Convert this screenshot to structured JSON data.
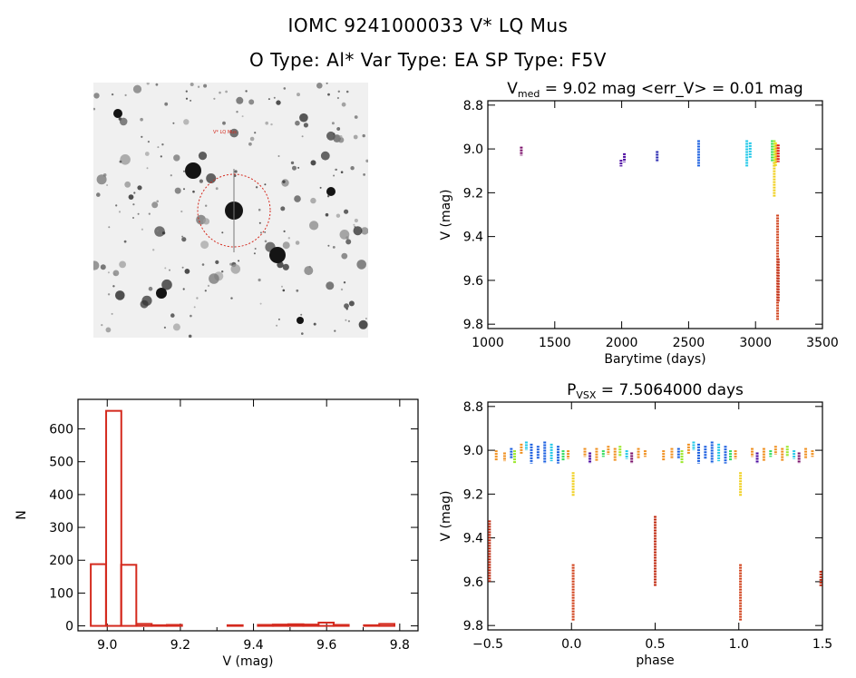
{
  "header": {
    "line1": "IOMC 9241000033   V* LQ Mus",
    "line2": "O Type: Al*  Var Type: EA  SP Type: F5V"
  },
  "thumbnail": {
    "label": "V* LQ Mus"
  },
  "colors": {
    "axis": "#000000",
    "histogram": "#d42a1e",
    "circle": "#d42a1e"
  },
  "chart_data": [
    {
      "id": "lightcurve",
      "type": "scatter",
      "title_parts": [
        "V",
        "med",
        " = 9.02 mag <err_V> = 0.01 mag"
      ],
      "xlabel": "Barytime (days)",
      "ylabel": "V (mag)",
      "xlim": [
        1000,
        3500
      ],
      "ylim": [
        9.82,
        8.78
      ],
      "xticks": [
        "1000",
        "1500",
        "2000",
        "2500",
        "3000",
        "3500"
      ],
      "yticks": [
        "8.8",
        "9.0",
        "9.2",
        "9.4",
        "9.6",
        "9.8"
      ],
      "points": [
        {
          "x": 1250,
          "y0": 8.99,
          "y1": 9.03,
          "c": "#7a0f6a"
        },
        {
          "x": 1995,
          "y0": 9.05,
          "y1": 9.08,
          "c": "#4b0aa0"
        },
        {
          "x": 2020,
          "y0": 9.02,
          "y1": 9.06,
          "c": "#4b0aa0"
        },
        {
          "x": 2265,
          "y0": 9.01,
          "y1": 9.06,
          "c": "#2a2ab0"
        },
        {
          "x": 2575,
          "y0": 8.96,
          "y1": 9.08,
          "c": "#1a5fe0"
        },
        {
          "x": 2935,
          "y0": 8.96,
          "y1": 9.08,
          "c": "#22c8e8"
        },
        {
          "x": 2960,
          "y0": 8.97,
          "y1": 9.04,
          "c": "#22c8e8"
        },
        {
          "x": 3125,
          "y0": 8.96,
          "y1": 9.06,
          "c": "#2edc5a"
        },
        {
          "x": 3140,
          "y0": 8.96,
          "y1": 9.08,
          "c": "#9be82a"
        },
        {
          "x": 3150,
          "y0": 8.97,
          "y1": 9.08,
          "c": "#f0e020"
        },
        {
          "x": 3160,
          "y0": 8.98,
          "y1": 9.06,
          "c": "#f09020"
        },
        {
          "x": 3170,
          "y0": 8.98,
          "y1": 9.06,
          "c": "#e01a1a"
        },
        {
          "x": 3140,
          "y0": 9.06,
          "y1": 9.22,
          "c": "#f0d020"
        },
        {
          "x": 3165,
          "y0": 9.3,
          "y1": 9.78,
          "c": "#d0401a"
        },
        {
          "x": 3170,
          "y0": 9.5,
          "y1": 9.7,
          "c": "#c02a10"
        }
      ]
    },
    {
      "id": "histogram",
      "type": "bar",
      "xlabel": "V (mag)",
      "ylabel": "N",
      "xlim": [
        8.92,
        9.85
      ],
      "ylim": [
        -15,
        690
      ],
      "xticks": [
        "9.0",
        "9.2",
        "9.4",
        "9.6",
        "9.8"
      ],
      "yticks": [
        "0",
        "100",
        "200",
        "300",
        "400",
        "500",
        "600"
      ],
      "bin_width": 0.0415,
      "bins": [
        {
          "x0": 8.955,
          "n": 188
        },
        {
          "x0": 8.997,
          "n": 655
        },
        {
          "x0": 9.038,
          "n": 186
        },
        {
          "x0": 9.08,
          "n": 6
        },
        {
          "x0": 9.121,
          "n": 2
        },
        {
          "x0": 9.163,
          "n": 3
        },
        {
          "x0": 9.204,
          "n": 0
        },
        {
          "x0": 9.246,
          "n": 0
        },
        {
          "x0": 9.287,
          "n": 0
        },
        {
          "x0": 9.329,
          "n": 2
        },
        {
          "x0": 9.37,
          "n": 0
        },
        {
          "x0": 9.412,
          "n": 3
        },
        {
          "x0": 9.453,
          "n": 4
        },
        {
          "x0": 9.495,
          "n": 5
        },
        {
          "x0": 9.536,
          "n": 4
        },
        {
          "x0": 9.578,
          "n": 10
        },
        {
          "x0": 9.619,
          "n": 3
        },
        {
          "x0": 9.661,
          "n": 0
        },
        {
          "x0": 9.702,
          "n": 2
        },
        {
          "x0": 9.744,
          "n": 6
        }
      ]
    },
    {
      "id": "phased",
      "type": "scatter",
      "title_parts": [
        "P",
        "VSX",
        " = 7.5064000 days"
      ],
      "xlabel": "phase",
      "ylabel": "V (mag)",
      "xlim": [
        -0.5,
        1.5
      ],
      "ylim": [
        9.82,
        8.78
      ],
      "xticks": [
        "−0.5",
        "0.0",
        "0.5",
        "1.0",
        "1.5"
      ],
      "yticks": [
        "8.8",
        "9.0",
        "9.2",
        "9.4",
        "9.6",
        "9.8"
      ],
      "segments": [
        {
          "x": -0.45,
          "y0": 9.0,
          "y1": 9.05,
          "c": "#f09020"
        },
        {
          "x": -0.4,
          "y0": 9.01,
          "y1": 9.05,
          "c": "#f09020"
        },
        {
          "x": -0.36,
          "y0": 8.99,
          "y1": 9.04,
          "c": "#1a5fe0"
        },
        {
          "x": -0.34,
          "y0": 9.0,
          "y1": 9.06,
          "c": "#9be82a"
        },
        {
          "x": -0.3,
          "y0": 8.97,
          "y1": 9.02,
          "c": "#f09020"
        },
        {
          "x": -0.27,
          "y0": 8.96,
          "y1": 9.0,
          "c": "#22c8e8"
        },
        {
          "x": -0.24,
          "y0": 8.97,
          "y1": 9.06,
          "c": "#1a5fe0"
        },
        {
          "x": -0.2,
          "y0": 8.98,
          "y1": 9.04,
          "c": "#1a5fe0"
        },
        {
          "x": -0.16,
          "y0": 8.96,
          "y1": 9.06,
          "c": "#1a5fe0"
        },
        {
          "x": -0.12,
          "y0": 8.97,
          "y1": 9.05,
          "c": "#22c8e8"
        },
        {
          "x": -0.08,
          "y0": 8.98,
          "y1": 9.06,
          "c": "#1a5fe0"
        },
        {
          "x": -0.05,
          "y0": 9.0,
          "y1": 9.05,
          "c": "#2edc5a"
        },
        {
          "x": -0.02,
          "y0": 9.0,
          "y1": 9.04,
          "c": "#f09020"
        },
        {
          "x": 0.01,
          "y0": 9.1,
          "y1": 9.21,
          "c": "#f0d020"
        },
        {
          "x": 0.01,
          "y0": 9.52,
          "y1": 9.78,
          "c": "#d0401a"
        },
        {
          "x": 0.08,
          "y0": 8.99,
          "y1": 9.03,
          "c": "#f09020"
        },
        {
          "x": 0.11,
          "y0": 9.01,
          "y1": 9.06,
          "c": "#4b0aa0"
        },
        {
          "x": 0.15,
          "y0": 8.99,
          "y1": 9.05,
          "c": "#f09020"
        },
        {
          "x": 0.19,
          "y0": 9.0,
          "y1": 9.03,
          "c": "#2edc5a"
        },
        {
          "x": 0.22,
          "y0": 8.98,
          "y1": 9.02,
          "c": "#f09020"
        },
        {
          "x": 0.26,
          "y0": 8.99,
          "y1": 9.05,
          "c": "#f09020"
        },
        {
          "x": 0.29,
          "y0": 8.98,
          "y1": 9.03,
          "c": "#9be82a"
        },
        {
          "x": 0.33,
          "y0": 9.0,
          "y1": 9.04,
          "c": "#22c8e8"
        },
        {
          "x": 0.36,
          "y0": 9.01,
          "y1": 9.06,
          "c": "#7a0f6a"
        },
        {
          "x": 0.4,
          "y0": 8.99,
          "y1": 9.04,
          "c": "#f09020"
        },
        {
          "x": 0.44,
          "y0": 9.0,
          "y1": 9.03,
          "c": "#f09020"
        },
        {
          "x": 0.5,
          "y0": 9.3,
          "y1": 9.62,
          "c": "#c02a10"
        },
        {
          "x": 0.55,
          "y0": 9.0,
          "y1": 9.05,
          "c": "#f09020"
        },
        {
          "x": 0.6,
          "y0": 8.99,
          "y1": 9.04,
          "c": "#f09020"
        },
        {
          "x": 0.64,
          "y0": 8.99,
          "y1": 9.04,
          "c": "#1a5fe0"
        },
        {
          "x": 0.66,
          "y0": 9.0,
          "y1": 9.06,
          "c": "#9be82a"
        },
        {
          "x": 0.7,
          "y0": 8.97,
          "y1": 9.02,
          "c": "#f09020"
        },
        {
          "x": 0.73,
          "y0": 8.96,
          "y1": 9.0,
          "c": "#22c8e8"
        },
        {
          "x": 0.76,
          "y0": 8.97,
          "y1": 9.06,
          "c": "#1a5fe0"
        },
        {
          "x": 0.8,
          "y0": 8.98,
          "y1": 9.04,
          "c": "#1a5fe0"
        },
        {
          "x": 0.84,
          "y0": 8.96,
          "y1": 9.06,
          "c": "#1a5fe0"
        },
        {
          "x": 0.88,
          "y0": 8.97,
          "y1": 9.05,
          "c": "#22c8e8"
        },
        {
          "x": 0.92,
          "y0": 8.98,
          "y1": 9.06,
          "c": "#1a5fe0"
        },
        {
          "x": 0.95,
          "y0": 9.0,
          "y1": 9.05,
          "c": "#2edc5a"
        },
        {
          "x": 0.98,
          "y0": 9.0,
          "y1": 9.04,
          "c": "#f09020"
        },
        {
          "x": 1.01,
          "y0": 9.1,
          "y1": 9.21,
          "c": "#f0d020"
        },
        {
          "x": 1.01,
          "y0": 9.52,
          "y1": 9.78,
          "c": "#d0401a"
        },
        {
          "x": 1.08,
          "y0": 8.99,
          "y1": 9.03,
          "c": "#f09020"
        },
        {
          "x": 1.11,
          "y0": 9.01,
          "y1": 9.06,
          "c": "#4b0aa0"
        },
        {
          "x": 1.15,
          "y0": 8.99,
          "y1": 9.05,
          "c": "#f09020"
        },
        {
          "x": 1.19,
          "y0": 9.0,
          "y1": 9.03,
          "c": "#2edc5a"
        },
        {
          "x": 1.22,
          "y0": 8.98,
          "y1": 9.02,
          "c": "#f09020"
        },
        {
          "x": 1.26,
          "y0": 8.99,
          "y1": 9.05,
          "c": "#f09020"
        },
        {
          "x": 1.29,
          "y0": 8.98,
          "y1": 9.03,
          "c": "#9be82a"
        },
        {
          "x": 1.33,
          "y0": 9.0,
          "y1": 9.04,
          "c": "#22c8e8"
        },
        {
          "x": 1.36,
          "y0": 9.01,
          "y1": 9.06,
          "c": "#7a0f6a"
        },
        {
          "x": 1.4,
          "y0": 8.99,
          "y1": 9.04,
          "c": "#f09020"
        },
        {
          "x": 1.44,
          "y0": 9.0,
          "y1": 9.03,
          "c": "#f09020"
        },
        {
          "x": -0.49,
          "y0": 9.32,
          "y1": 9.6,
          "c": "#c02a10"
        },
        {
          "x": 1.49,
          "y0": 9.55,
          "y1": 9.62,
          "c": "#c02a10"
        }
      ]
    }
  ]
}
